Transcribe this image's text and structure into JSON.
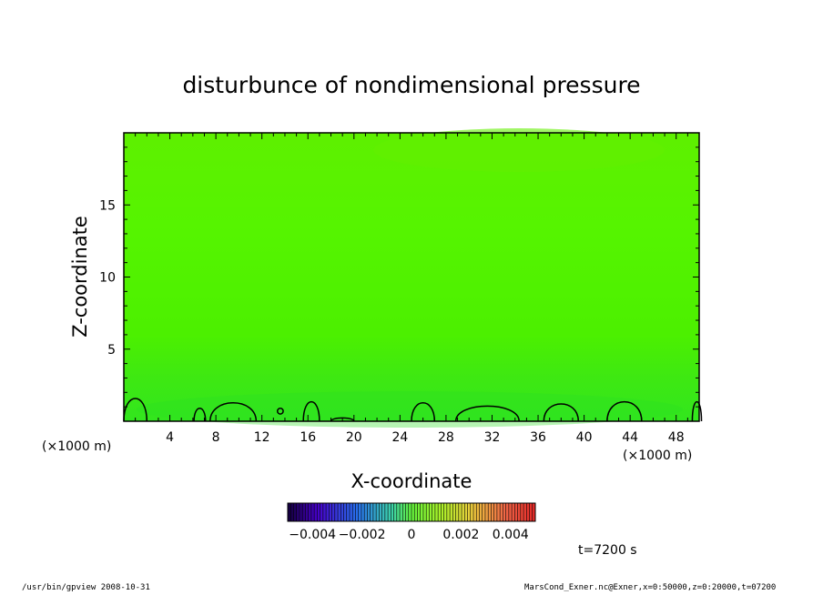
{
  "chart_data": {
    "type": "heatmap",
    "title": "disturbunce of nondimensional pressure",
    "xlabel": "X-coordinate",
    "ylabel": "Z-coordinate",
    "x_unit": "(×1000 m)",
    "y_unit": "(×1000 m)",
    "xlim": [
      0,
      50
    ],
    "ylim": [
      0,
      20
    ],
    "x_ticks": [
      4,
      8,
      12,
      16,
      20,
      24,
      28,
      32,
      36,
      40,
      44,
      48
    ],
    "y_ticks": [
      5,
      10,
      15
    ],
    "colorbar": {
      "range": [
        -0.005,
        0.005
      ],
      "tick_labels": [
        "-0.004",
        "-0.002",
        "0",
        "0.002",
        "0.004"
      ],
      "tick_values": [
        -0.004,
        -0.002,
        0,
        0.002,
        0.004
      ]
    },
    "dominant_value": 0,
    "zero_contour_bumps": [
      {
        "center": 1,
        "width": 2.0,
        "height": 2.1
      },
      {
        "center": 6.6,
        "width": 1.0,
        "height": 1.2
      },
      {
        "center": 9.5,
        "width": 4.0,
        "height": 1.7
      },
      {
        "center": 13.6,
        "width": 0.5,
        "height": 0.7
      },
      {
        "center": 16.3,
        "width": 1.4,
        "height": 1.8
      },
      {
        "center": 19.0,
        "width": 2.0,
        "height": 0.3
      },
      {
        "center": 26.0,
        "width": 2.0,
        "height": 1.7
      },
      {
        "center": 31.6,
        "width": 5.5,
        "height": 1.4
      },
      {
        "center": 38.0,
        "width": 3.0,
        "height": 1.6
      },
      {
        "center": 43.5,
        "width": 3.0,
        "height": 1.8
      },
      {
        "center": 49.8,
        "width": 0.8,
        "height": 1.8
      }
    ],
    "time_label": "t=7200 s"
  },
  "footer": {
    "left": "/usr/bin/gpview  2008-10-31",
    "right": "MarsCond_Exner.nc@Exner,x=0:50000,z=0:20000,t=07200"
  }
}
